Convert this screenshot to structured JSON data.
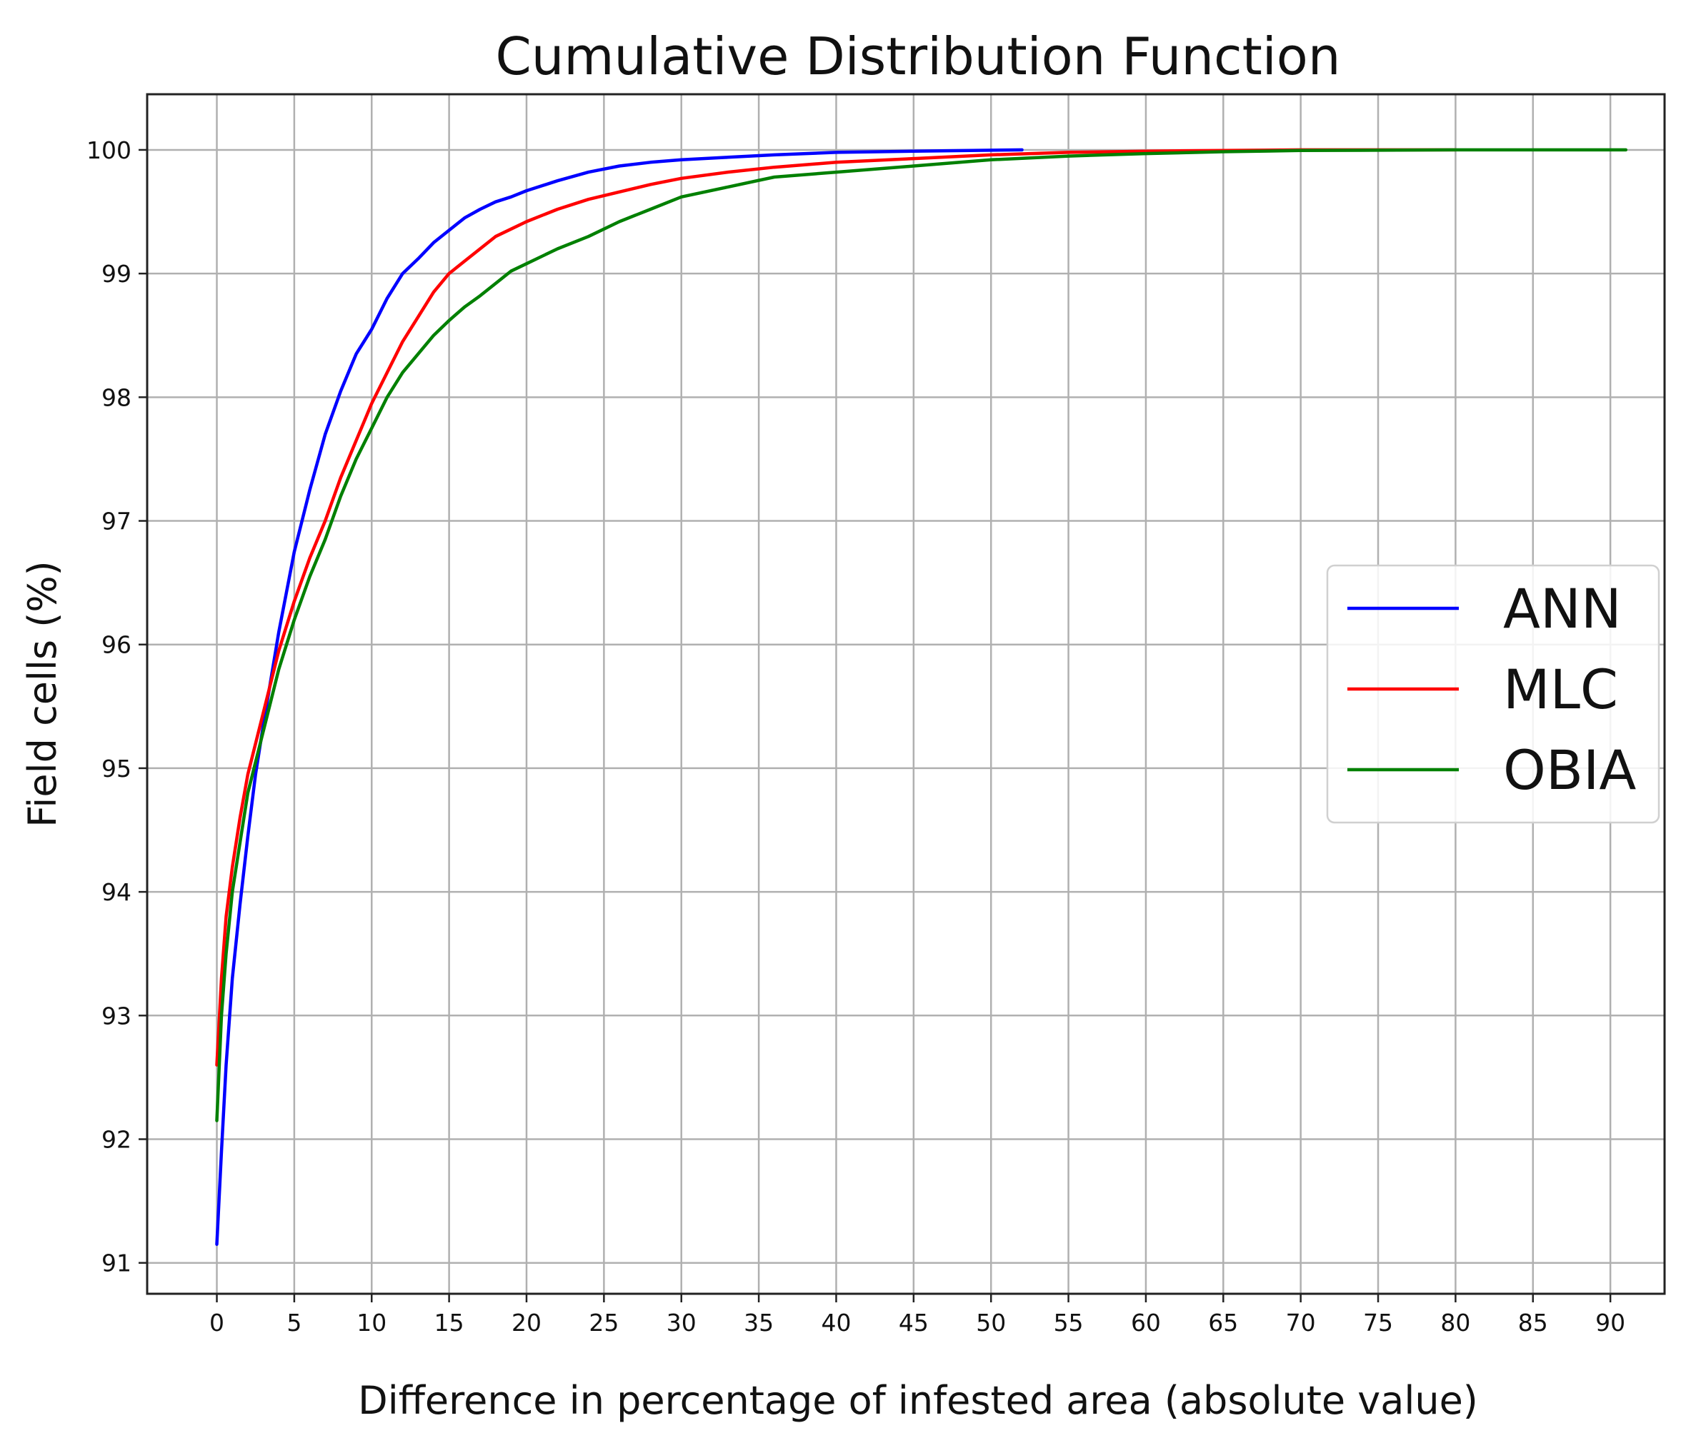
{
  "chart_data": {
    "type": "line",
    "title": "Cumulative Distribution Function",
    "xlabel": "Difference in percentage of infested area (absolute value)",
    "ylabel": "Field cells (%)",
    "xlim": [
      -4.5,
      93.5
    ],
    "ylim": [
      90.75,
      100.45
    ],
    "xticks": [
      0,
      5,
      10,
      15,
      20,
      25,
      30,
      35,
      40,
      45,
      50,
      55,
      60,
      65,
      70,
      75,
      80,
      85,
      90
    ],
    "yticks": [
      91,
      92,
      93,
      94,
      95,
      96,
      97,
      98,
      99,
      100
    ],
    "grid": true,
    "legend_position": "center-right",
    "series": [
      {
        "name": "ANN",
        "color": "#0000ff",
        "x": [
          0,
          0.3,
          0.6,
          1,
          1.5,
          2,
          2.5,
          3,
          4,
          5,
          6,
          7,
          8,
          9,
          10,
          11,
          12,
          13,
          14,
          15,
          16,
          17,
          18,
          19,
          20,
          22,
          24,
          26,
          28,
          30,
          33,
          36,
          40,
          45,
          52
        ],
        "values": [
          91.15,
          91.9,
          92.6,
          93.3,
          93.9,
          94.45,
          94.95,
          95.35,
          96.1,
          96.75,
          97.25,
          97.7,
          98.05,
          98.35,
          98.55,
          98.8,
          99.0,
          99.12,
          99.25,
          99.35,
          99.45,
          99.52,
          99.58,
          99.62,
          99.67,
          99.75,
          99.82,
          99.87,
          99.9,
          99.92,
          99.94,
          99.96,
          99.98,
          99.99,
          100.0
        ]
      },
      {
        "name": "MLC",
        "color": "#ff0000",
        "x": [
          0,
          0.3,
          0.6,
          1,
          1.5,
          2,
          3,
          4,
          5,
          6,
          7,
          8,
          9,
          10,
          11,
          12,
          13,
          14,
          15,
          16,
          17,
          18,
          19,
          20,
          22,
          24,
          26,
          28,
          30,
          33,
          36,
          40,
          45,
          50,
          55,
          60,
          65,
          70,
          80
        ],
        "values": [
          92.6,
          93.3,
          93.8,
          94.2,
          94.6,
          94.95,
          95.45,
          95.95,
          96.35,
          96.7,
          97.0,
          97.35,
          97.65,
          97.95,
          98.2,
          98.45,
          98.65,
          98.85,
          99.0,
          99.1,
          99.2,
          99.3,
          99.36,
          99.42,
          99.52,
          99.6,
          99.66,
          99.72,
          99.77,
          99.82,
          99.86,
          99.9,
          99.93,
          99.96,
          99.98,
          99.99,
          99.995,
          100.0,
          100.0
        ]
      },
      {
        "name": "OBIA",
        "color": "#008000",
        "x": [
          0,
          0.3,
          0.6,
          1,
          1.5,
          2,
          3,
          4,
          5,
          6,
          7,
          8,
          9,
          10,
          11,
          12,
          13,
          14,
          15,
          16,
          17,
          18,
          19,
          20,
          22,
          24,
          26,
          28,
          30,
          33,
          36,
          40,
          45,
          50,
          55,
          60,
          65,
          70,
          80,
          91
        ],
        "values": [
          92.15,
          93.0,
          93.5,
          94.0,
          94.4,
          94.8,
          95.3,
          95.8,
          96.2,
          96.55,
          96.85,
          97.2,
          97.5,
          97.75,
          98.0,
          98.2,
          98.35,
          98.5,
          98.62,
          98.73,
          98.82,
          98.92,
          99.02,
          99.08,
          99.2,
          99.3,
          99.42,
          99.52,
          99.62,
          99.7,
          99.78,
          99.82,
          99.87,
          99.92,
          99.95,
          99.97,
          99.985,
          99.995,
          100.0,
          100.0
        ]
      }
    ]
  }
}
